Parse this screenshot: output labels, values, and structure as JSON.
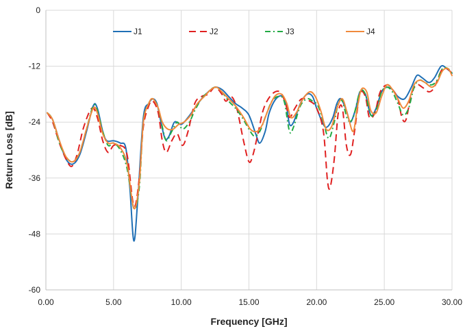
{
  "chart_data": {
    "type": "line",
    "xlabel": "Frequency [GHz]",
    "ylabel": "Return Loss [dB]",
    "xlim": [
      0,
      30
    ],
    "ylim": [
      -60,
      0
    ],
    "x_ticks": [
      0,
      5,
      10,
      15,
      20,
      25,
      30
    ],
    "x_tick_labels": [
      "0.00",
      "5.00",
      "10.00",
      "15.00",
      "20.00",
      "25.00",
      "30.00"
    ],
    "y_ticks": [
      0,
      -12,
      -24,
      -36,
      -48,
      -60
    ],
    "y_tick_labels": [
      "0",
      "-12",
      "-24",
      "-36",
      "-48",
      "-60"
    ],
    "grid": true,
    "legend_position": "top",
    "series": [
      {
        "name": "J1",
        "color": "#1f6fb5",
        "dash": "solid",
        "points": [
          [
            0.1,
            -22
          ],
          [
            0.5,
            -23.5
          ],
          [
            1,
            -28
          ],
          [
            1.5,
            -32
          ],
          [
            2,
            -33
          ],
          [
            2.5,
            -31
          ],
          [
            3,
            -26
          ],
          [
            3.5,
            -20.5
          ],
          [
            3.8,
            -21
          ],
          [
            4.2,
            -26
          ],
          [
            4.5,
            -28
          ],
          [
            5,
            -28
          ],
          [
            5.5,
            -28.5
          ],
          [
            5.9,
            -29.5
          ],
          [
            6.2,
            -38
          ],
          [
            6.5,
            -49.5
          ],
          [
            6.8,
            -40
          ],
          [
            7.2,
            -23
          ],
          [
            7.6,
            -20
          ],
          [
            7.9,
            -19
          ],
          [
            8.2,
            -20
          ],
          [
            8.5,
            -24
          ],
          [
            8.8,
            -27.5
          ],
          [
            9.1,
            -27
          ],
          [
            9.5,
            -24
          ],
          [
            10,
            -24.5
          ],
          [
            10.5,
            -23
          ],
          [
            11,
            -21
          ],
          [
            11.5,
            -19
          ],
          [
            12,
            -17.5
          ],
          [
            12.5,
            -16.5
          ],
          [
            13,
            -17
          ],
          [
            13.5,
            -18.5
          ],
          [
            14,
            -20
          ],
          [
            14.5,
            -21
          ],
          [
            15,
            -22.5
          ],
          [
            15.5,
            -26.5
          ],
          [
            15.8,
            -28.5
          ],
          [
            16.2,
            -26
          ],
          [
            16.5,
            -22
          ],
          [
            17,
            -19
          ],
          [
            17.5,
            -18.5
          ],
          [
            17.8,
            -21
          ],
          [
            18,
            -24.5
          ],
          [
            18.3,
            -24
          ],
          [
            18.8,
            -20
          ],
          [
            19.3,
            -18
          ],
          [
            19.7,
            -18.5
          ],
          [
            20,
            -21
          ],
          [
            20.5,
            -24.5
          ],
          [
            20.8,
            -25
          ],
          [
            21.2,
            -23
          ],
          [
            21.5,
            -20
          ],
          [
            21.8,
            -19
          ],
          [
            22.2,
            -21.5
          ],
          [
            22.5,
            -24
          ],
          [
            22.9,
            -21
          ],
          [
            23.2,
            -17.5
          ],
          [
            23.6,
            -18
          ],
          [
            24,
            -22.5
          ],
          [
            24.4,
            -21
          ],
          [
            24.8,
            -17.5
          ],
          [
            25.2,
            -16.5
          ],
          [
            25.6,
            -17
          ],
          [
            26,
            -18.5
          ],
          [
            26.5,
            -19
          ],
          [
            27,
            -16.5
          ],
          [
            27.4,
            -14
          ],
          [
            27.8,
            -14.5
          ],
          [
            28.3,
            -15.5
          ],
          [
            28.7,
            -14.5
          ],
          [
            29.2,
            -12
          ],
          [
            29.6,
            -12.5
          ],
          [
            30,
            -13.5
          ]
        ]
      },
      {
        "name": "J2",
        "color": "#e02020",
        "dash": "10,6",
        "points": [
          [
            0.1,
            -22
          ],
          [
            0.5,
            -24
          ],
          [
            1,
            -28.5
          ],
          [
            1.5,
            -32
          ],
          [
            1.9,
            -33.5
          ],
          [
            2.3,
            -31
          ],
          [
            2.8,
            -25
          ],
          [
            3.4,
            -21
          ],
          [
            3.8,
            -23
          ],
          [
            4.2,
            -28
          ],
          [
            4.6,
            -30.5
          ],
          [
            5,
            -29
          ],
          [
            5.5,
            -29
          ],
          [
            6,
            -31
          ],
          [
            6.5,
            -42
          ],
          [
            6.9,
            -36
          ],
          [
            7.2,
            -25
          ],
          [
            7.6,
            -20.5
          ],
          [
            7.9,
            -19.5
          ],
          [
            8.3,
            -22
          ],
          [
            8.6,
            -28
          ],
          [
            8.9,
            -30.5
          ],
          [
            9.3,
            -28
          ],
          [
            9.7,
            -26.5
          ],
          [
            10.1,
            -29
          ],
          [
            10.5,
            -26
          ],
          [
            11,
            -20
          ],
          [
            11.5,
            -18.5
          ],
          [
            12,
            -18
          ],
          [
            12.5,
            -16.5
          ],
          [
            13,
            -18
          ],
          [
            13.3,
            -19.5
          ],
          [
            13.7,
            -18.5
          ],
          [
            14.1,
            -21
          ],
          [
            14.6,
            -28
          ],
          [
            15,
            -32.5
          ],
          [
            15.3,
            -31
          ],
          [
            15.7,
            -26
          ],
          [
            16.1,
            -21
          ],
          [
            16.7,
            -18
          ],
          [
            17.3,
            -17.5
          ],
          [
            17.7,
            -20
          ],
          [
            18,
            -23
          ],
          [
            18.4,
            -21
          ],
          [
            18.9,
            -19
          ],
          [
            19.5,
            -19.5
          ],
          [
            20,
            -21
          ],
          [
            20.5,
            -26
          ],
          [
            20.8,
            -36.5
          ],
          [
            21,
            -38
          ],
          [
            21.3,
            -32
          ],
          [
            21.6,
            -22
          ],
          [
            21.9,
            -21
          ],
          [
            22.2,
            -29
          ],
          [
            22.5,
            -31
          ],
          [
            22.8,
            -26
          ],
          [
            23.2,
            -18
          ],
          [
            23.6,
            -18.5
          ],
          [
            23.9,
            -23
          ],
          [
            24.3,
            -22
          ],
          [
            24.7,
            -17.5
          ],
          [
            25.2,
            -16
          ],
          [
            25.6,
            -17
          ],
          [
            26,
            -19
          ],
          [
            26.3,
            -23
          ],
          [
            26.6,
            -23.5
          ],
          [
            27,
            -18
          ],
          [
            27.4,
            -16
          ],
          [
            27.8,
            -16.5
          ],
          [
            28.3,
            -17.5
          ],
          [
            28.7,
            -16.5
          ],
          [
            29.2,
            -13
          ],
          [
            29.6,
            -12.5
          ],
          [
            30,
            -13.5
          ]
        ]
      },
      {
        "name": "J3",
        "color": "#22aa44",
        "dash": "8,4,2,4",
        "points": [
          [
            0.1,
            -22
          ],
          [
            0.5,
            -23.5
          ],
          [
            1,
            -28.5
          ],
          [
            1.5,
            -31.5
          ],
          [
            2,
            -32.5
          ],
          [
            2.5,
            -30.5
          ],
          [
            3,
            -25.5
          ],
          [
            3.5,
            -20.5
          ],
          [
            3.8,
            -21.5
          ],
          [
            4.2,
            -26
          ],
          [
            4.6,
            -29
          ],
          [
            5,
            -28.5
          ],
          [
            5.5,
            -30
          ],
          [
            6,
            -34
          ],
          [
            6.5,
            -42.5
          ],
          [
            6.9,
            -38
          ],
          [
            7.2,
            -24
          ],
          [
            7.6,
            -20
          ],
          [
            7.9,
            -19
          ],
          [
            8.3,
            -21
          ],
          [
            8.6,
            -25
          ],
          [
            8.9,
            -28
          ],
          [
            9.3,
            -26
          ],
          [
            9.7,
            -24
          ],
          [
            10.1,
            -25.5
          ],
          [
            10.6,
            -24
          ],
          [
            11,
            -21.5
          ],
          [
            11.5,
            -19
          ],
          [
            12,
            -17.5
          ],
          [
            12.5,
            -16.5
          ],
          [
            13,
            -17.5
          ],
          [
            13.5,
            -19.5
          ],
          [
            14,
            -21
          ],
          [
            14.5,
            -23
          ],
          [
            15,
            -25.5
          ],
          [
            15.4,
            -27
          ],
          [
            15.8,
            -26
          ],
          [
            16.2,
            -23
          ],
          [
            16.7,
            -19.5
          ],
          [
            17.2,
            -18.5
          ],
          [
            17.6,
            -19.5
          ],
          [
            18,
            -26
          ],
          [
            18.3,
            -25
          ],
          [
            18.8,
            -20.5
          ],
          [
            19.3,
            -19
          ],
          [
            19.7,
            -19.5
          ],
          [
            20.1,
            -20.5
          ],
          [
            20.5,
            -24
          ],
          [
            20.9,
            -27.5
          ],
          [
            21.3,
            -24
          ],
          [
            21.6,
            -20
          ],
          [
            21.9,
            -19.5
          ],
          [
            22.3,
            -23.5
          ],
          [
            22.7,
            -23
          ],
          [
            23.2,
            -17.5
          ],
          [
            23.6,
            -18
          ],
          [
            24,
            -22.5
          ],
          [
            24.4,
            -21.5
          ],
          [
            24.8,
            -17.5
          ],
          [
            25.2,
            -16.5
          ],
          [
            25.6,
            -17.5
          ],
          [
            26,
            -20
          ],
          [
            26.4,
            -22.5
          ],
          [
            26.8,
            -21
          ],
          [
            27.2,
            -16.5
          ],
          [
            27.6,
            -15
          ],
          [
            28,
            -15.5
          ],
          [
            28.5,
            -16
          ],
          [
            28.9,
            -15
          ],
          [
            29.3,
            -12.5
          ],
          [
            29.7,
            -12.5
          ],
          [
            30,
            -13.5
          ]
        ]
      },
      {
        "name": "J4",
        "color": "#f08a3c",
        "dash": "solid",
        "points": [
          [
            0.1,
            -22
          ],
          [
            0.5,
            -23.5
          ],
          [
            1,
            -28
          ],
          [
            1.5,
            -31.5
          ],
          [
            2,
            -32.5
          ],
          [
            2.5,
            -30.5
          ],
          [
            3,
            -25.5
          ],
          [
            3.5,
            -21
          ],
          [
            3.8,
            -22
          ],
          [
            4.2,
            -26.5
          ],
          [
            4.6,
            -28.5
          ],
          [
            5,
            -28.5
          ],
          [
            5.5,
            -29.5
          ],
          [
            6,
            -33
          ],
          [
            6.5,
            -42.5
          ],
          [
            6.9,
            -37
          ],
          [
            7.2,
            -24
          ],
          [
            7.6,
            -20
          ],
          [
            7.9,
            -19
          ],
          [
            8.3,
            -21
          ],
          [
            8.6,
            -24
          ],
          [
            9,
            -25.5
          ],
          [
            9.4,
            -25.5
          ],
          [
            9.8,
            -24.5
          ],
          [
            10.2,
            -24
          ],
          [
            10.7,
            -22.5
          ],
          [
            11.2,
            -20
          ],
          [
            11.7,
            -18.5
          ],
          [
            12.2,
            -17
          ],
          [
            12.6,
            -16.5
          ],
          [
            13,
            -17.5
          ],
          [
            13.5,
            -19
          ],
          [
            14,
            -20.5
          ],
          [
            14.6,
            -23
          ],
          [
            15.1,
            -25.5
          ],
          [
            15.6,
            -26
          ],
          [
            16,
            -24.5
          ],
          [
            16.4,
            -21.5
          ],
          [
            16.9,
            -18.5
          ],
          [
            17.4,
            -18
          ],
          [
            17.8,
            -20
          ],
          [
            18.1,
            -23
          ],
          [
            18.5,
            -22
          ],
          [
            19,
            -19
          ],
          [
            19.5,
            -17.5
          ],
          [
            19.9,
            -18.5
          ],
          [
            20.3,
            -21.5
          ],
          [
            20.7,
            -25.5
          ],
          [
            21.1,
            -25
          ],
          [
            21.5,
            -21
          ],
          [
            21.9,
            -19
          ],
          [
            22.3,
            -22.5
          ],
          [
            22.7,
            -26
          ],
          [
            23,
            -21
          ],
          [
            23.3,
            -17
          ],
          [
            23.7,
            -17.5
          ],
          [
            24,
            -21.5
          ],
          [
            24.4,
            -22
          ],
          [
            24.8,
            -18.5
          ],
          [
            25.2,
            -16
          ],
          [
            25.6,
            -17
          ],
          [
            26,
            -19
          ],
          [
            26.4,
            -21
          ],
          [
            26.8,
            -19.5
          ],
          [
            27.2,
            -16
          ],
          [
            27.6,
            -15
          ],
          [
            28,
            -15.5
          ],
          [
            28.5,
            -16.5
          ],
          [
            28.9,
            -15.5
          ],
          [
            29.3,
            -13
          ],
          [
            29.7,
            -12.5
          ],
          [
            30,
            -14
          ]
        ]
      }
    ]
  }
}
